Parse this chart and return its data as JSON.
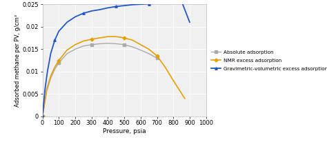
{
  "title": "",
  "xlabel": "Pressure, psia",
  "ylabel": "Adsorbed methane per PV, g/cm³",
  "xlim": [
    0,
    1000
  ],
  "ylim": [
    0,
    0.025
  ],
  "ytick_vals": [
    0,
    0.005,
    0.01,
    0.015,
    0.02,
    0.025
  ],
  "ytick_labels": [
    "0",
    "0.005",
    "0.01",
    "0.015",
    "0.02",
    "0.025"
  ],
  "xtick_vals": [
    0,
    100,
    200,
    300,
    400,
    500,
    600,
    700,
    800,
    900,
    1000
  ],
  "bg_color": "#f0f0f0",
  "grid_color": "#ffffff",
  "legend_labels": [
    "Absolute adsorption",
    "NMR excess adsorption",
    "Gravimetric-volumetric excess adsorption"
  ],
  "line_colors": [
    "#aaaaaa",
    "#e8a000",
    "#2255cc"
  ],
  "abs_pressure": [
    0,
    25,
    50,
    75,
    100,
    150,
    200,
    250,
    300,
    350,
    400,
    450,
    500,
    550,
    600,
    650,
    700
  ],
  "abs_values": [
    0,
    0.0055,
    0.0085,
    0.0105,
    0.012,
    0.014,
    0.015,
    0.0157,
    0.016,
    0.0162,
    0.0163,
    0.0162,
    0.016,
    0.0155,
    0.0148,
    0.014,
    0.013
  ],
  "nmr_pressure": [
    0,
    25,
    50,
    75,
    100,
    150,
    200,
    250,
    300,
    350,
    400,
    450,
    500,
    550,
    600,
    650,
    700,
    750,
    800,
    870
  ],
  "nmr_values": [
    0,
    0.006,
    0.009,
    0.011,
    0.0125,
    0.0148,
    0.016,
    0.0168,
    0.0172,
    0.0175,
    0.0178,
    0.0178,
    0.0175,
    0.017,
    0.016,
    0.015,
    0.0135,
    0.011,
    0.008,
    0.004
  ],
  "grav_pressure": [
    0,
    15,
    30,
    50,
    75,
    100,
    150,
    200,
    250,
    300,
    350,
    400,
    450,
    500,
    550,
    600,
    650,
    700,
    750,
    800,
    850,
    900
  ],
  "grav_values": [
    0,
    0.006,
    0.01,
    0.014,
    0.017,
    0.019,
    0.021,
    0.0222,
    0.023,
    0.0235,
    0.0238,
    0.0242,
    0.0245,
    0.0247,
    0.0249,
    0.025,
    0.0251,
    0.0252,
    0.0253,
    0.0255,
    0.0257,
    0.021
  ],
  "marker_styles": [
    "s",
    "D",
    "^"
  ],
  "marker_every_abs": 4,
  "marker_every_nmr": 4,
  "marker_every_grav": 4
}
